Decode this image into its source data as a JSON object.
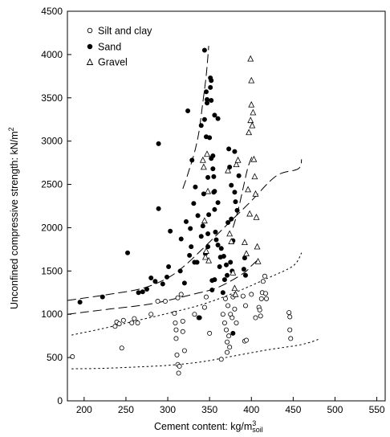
{
  "chart_data": {
    "type": "scatter",
    "xlabel": "Cement content: kg/m",
    "xlabel_superscript": "3",
    "xlabel_subscript": "soil",
    "ylabel": "Unconfined compressive strength: kN/m",
    "ylabel_superscript": "2",
    "xlim": [
      180,
      560
    ],
    "ylim": [
      0,
      4500
    ],
    "x_ticks": [
      "200",
      "250",
      "300",
      "350",
      "400",
      "450",
      "500",
      "550"
    ],
    "y_ticks": [
      "0",
      "500",
      "1000",
      "1500",
      "2000",
      "2500",
      "3000",
      "3500",
      "4000",
      "4500"
    ],
    "grid": false,
    "legend_position": "top-left",
    "legend": [
      {
        "label": "Silt and clay",
        "marker": "open-circle"
      },
      {
        "label": "Sand",
        "marker": "filled-circle"
      },
      {
        "label": "Gravel",
        "marker": "open-triangle"
      }
    ],
    "series": [
      {
        "name": "Silt and clay",
        "marker": "open-circle",
        "points": [
          [
            186,
            510
          ],
          [
            237,
            860
          ],
          [
            239,
            910
          ],
          [
            242,
            890
          ],
          [
            245,
            610
          ],
          [
            247,
            930
          ],
          [
            257,
            900
          ],
          [
            260,
            950
          ],
          [
            264,
            900
          ],
          [
            280,
            1000
          ],
          [
            288,
            1150
          ],
          [
            297,
            1150
          ],
          [
            308,
            1010
          ],
          [
            309,
            900
          ],
          [
            310,
            820
          ],
          [
            310,
            720
          ],
          [
            311,
            530
          ],
          [
            312,
            420
          ],
          [
            313,
            320
          ],
          [
            314,
            400
          ],
          [
            312,
            1190
          ],
          [
            316,
            1230
          ],
          [
            318,
            920
          ],
          [
            318,
            800
          ],
          [
            320,
            580
          ],
          [
            332,
            1000
          ],
          [
            337,
            960
          ],
          [
            344,
            1080
          ],
          [
            346,
            1200
          ],
          [
            350,
            780
          ],
          [
            364,
            480
          ],
          [
            366,
            1000
          ],
          [
            368,
            900
          ],
          [
            369,
            1180
          ],
          [
            370,
            820
          ],
          [
            371,
            680
          ],
          [
            371,
            560
          ],
          [
            372,
            1100
          ],
          [
            373,
            750
          ],
          [
            374,
            620
          ],
          [
            375,
            1000
          ],
          [
            377,
            960
          ],
          [
            378,
            1200
          ],
          [
            380,
            1060
          ],
          [
            382,
            900
          ],
          [
            390,
            1210
          ],
          [
            392,
            690
          ],
          [
            393,
            1100
          ],
          [
            394,
            700
          ],
          [
            400,
            1230
          ],
          [
            405,
            960
          ],
          [
            409,
            1080
          ],
          [
            410,
            1050
          ],
          [
            411,
            980
          ],
          [
            412,
            1180
          ],
          [
            413,
            1250
          ],
          [
            414,
            1380
          ],
          [
            416,
            1440
          ],
          [
            417,
            1240
          ],
          [
            418,
            1180
          ],
          [
            445,
            1020
          ],
          [
            446,
            970
          ],
          [
            446,
            820
          ],
          [
            447,
            720
          ]
        ]
      },
      {
        "name": "Sand",
        "marker": "filled-circle",
        "points": [
          [
            195,
            1140
          ],
          [
            222,
            1200
          ],
          [
            252,
            1710
          ],
          [
            265,
            1250
          ],
          [
            270,
            1260
          ],
          [
            275,
            1290
          ],
          [
            280,
            1420
          ],
          [
            285,
            1380
          ],
          [
            289,
            2970
          ],
          [
            289,
            2220
          ],
          [
            294,
            1350
          ],
          [
            299,
            1430
          ],
          [
            301,
            1550
          ],
          [
            303,
            1960
          ],
          [
            315,
            1500
          ],
          [
            316,
            1870
          ],
          [
            320,
            1360
          ],
          [
            322,
            2070
          ],
          [
            324,
            3350
          ],
          [
            326,
            1680
          ],
          [
            327,
            1990
          ],
          [
            328,
            1780
          ],
          [
            329,
            2780
          ],
          [
            331,
            2280
          ],
          [
            332,
            1600
          ],
          [
            333,
            2470
          ],
          [
            335,
            1600
          ],
          [
            336,
            2140
          ],
          [
            338,
            960
          ],
          [
            340,
            1900
          ],
          [
            340,
            3180
          ],
          [
            342,
            2020
          ],
          [
            343,
            2390
          ],
          [
            344,
            3250
          ],
          [
            344,
            4050
          ],
          [
            345,
            1700
          ],
          [
            346,
            3050
          ],
          [
            346,
            3570
          ],
          [
            347,
            3440
          ],
          [
            347,
            3480
          ],
          [
            348,
            1780
          ],
          [
            348,
            1930
          ],
          [
            348,
            2580
          ],
          [
            349,
            2150
          ],
          [
            350,
            3040
          ],
          [
            351,
            3620
          ],
          [
            351,
            3730
          ],
          [
            352,
            2800
          ],
          [
            352,
            3470
          ],
          [
            352,
            3700
          ],
          [
            353,
            1280
          ],
          [
            353,
            1390
          ],
          [
            354,
            2680
          ],
          [
            354,
            2830
          ],
          [
            355,
            2410
          ],
          [
            355,
            2590
          ],
          [
            356,
            1400
          ],
          [
            356,
            2210
          ],
          [
            356,
            2420
          ],
          [
            356,
            3300
          ],
          [
            357,
            1950
          ],
          [
            358,
            1860
          ],
          [
            360,
            1800
          ],
          [
            360,
            2290
          ],
          [
            360,
            3260
          ],
          [
            362,
            1550
          ],
          [
            363,
            1660
          ],
          [
            364,
            1760
          ],
          [
            366,
            1250
          ],
          [
            367,
            1670
          ],
          [
            368,
            1400
          ],
          [
            370,
            1570
          ],
          [
            371,
            1450
          ],
          [
            372,
            2060
          ],
          [
            373,
            2910
          ],
          [
            374,
            2700
          ],
          [
            375,
            1600
          ],
          [
            376,
            2100
          ],
          [
            376,
            2490
          ],
          [
            377,
            1500
          ],
          [
            378,
            780
          ],
          [
            378,
            1850
          ],
          [
            380,
            2410
          ],
          [
            380,
            2880
          ],
          [
            381,
            2300
          ],
          [
            383,
            2200
          ],
          [
            385,
            2600
          ],
          [
            391,
            1520
          ],
          [
            392,
            1650
          ],
          [
            393,
            1450
          ]
        ]
      },
      {
        "name": "Gravel",
        "marker": "open-triangle",
        "points": [
          [
            342,
            2780
          ],
          [
            343,
            2700
          ],
          [
            344,
            2080
          ],
          [
            345,
            1660
          ],
          [
            346,
            1730
          ],
          [
            347,
            2850
          ],
          [
            348,
            2420
          ],
          [
            349,
            1620
          ],
          [
            372,
            2660
          ],
          [
            374,
            1930
          ],
          [
            376,
            1840
          ],
          [
            378,
            1480
          ],
          [
            380,
            1300
          ],
          [
            381,
            1230
          ],
          [
            382,
            2730
          ],
          [
            384,
            2780
          ],
          [
            392,
            1830
          ],
          [
            394,
            1700
          ],
          [
            396,
            2440
          ],
          [
            397,
            3100
          ],
          [
            398,
            2160
          ],
          [
            399,
            3950
          ],
          [
            399,
            3240
          ],
          [
            400,
            3700
          ],
          [
            400,
            3420
          ],
          [
            401,
            3180
          ],
          [
            402,
            3330
          ],
          [
            403,
            2790
          ],
          [
            404,
            2590
          ],
          [
            405,
            2390
          ],
          [
            406,
            2120
          ],
          [
            407,
            1780
          ],
          [
            408,
            1610
          ]
        ]
      }
    ],
    "curves": [
      {
        "style": "long-dash",
        "points": [
          [
            180,
            1160
          ],
          [
            230,
            1230
          ],
          [
            270,
            1300
          ],
          [
            300,
            1420
          ],
          [
            320,
            1560
          ],
          [
            340,
            1740
          ],
          [
            360,
            1930
          ],
          [
            380,
            2120
          ],
          [
            400,
            2310
          ],
          [
            430,
            2600
          ],
          [
            456,
            2680
          ],
          [
            460,
            2790
          ]
        ]
      },
      {
        "style": "long-dash",
        "points": [
          [
            180,
            1000
          ],
          [
            230,
            1060
          ],
          [
            280,
            1120
          ],
          [
            330,
            1230
          ],
          [
            360,
            1310
          ],
          [
            390,
            1470
          ],
          [
            400,
            1560
          ],
          [
            410,
            1650
          ]
        ]
      },
      {
        "style": "short-dash",
        "points": [
          [
            185,
            760
          ],
          [
            220,
            830
          ],
          [
            260,
            920
          ],
          [
            300,
            1010
          ],
          [
            340,
            1110
          ],
          [
            380,
            1250
          ],
          [
            420,
            1420
          ],
          [
            450,
            1560
          ],
          [
            460,
            1710
          ]
        ]
      },
      {
        "style": "short-dash",
        "points": [
          [
            185,
            370
          ],
          [
            220,
            375
          ],
          [
            260,
            390
          ],
          [
            300,
            410
          ],
          [
            340,
            450
          ],
          [
            380,
            520
          ],
          [
            420,
            590
          ],
          [
            460,
            650
          ],
          [
            480,
            710
          ]
        ]
      },
      {
        "style": "long-dash",
        "points": [
          [
            318,
            2450
          ],
          [
            322,
            2560
          ],
          [
            326,
            2680
          ],
          [
            330,
            2800
          ],
          [
            334,
            2950
          ],
          [
            338,
            3150
          ],
          [
            342,
            3450
          ],
          [
            346,
            3760
          ],
          [
            349,
            4100
          ]
        ]
      },
      {
        "style": "long-dash",
        "points": [
          [
            378,
            2000
          ],
          [
            384,
            2200
          ],
          [
            390,
            2450
          ],
          [
            396,
            2700
          ],
          [
            402,
            2850
          ]
        ]
      }
    ]
  }
}
